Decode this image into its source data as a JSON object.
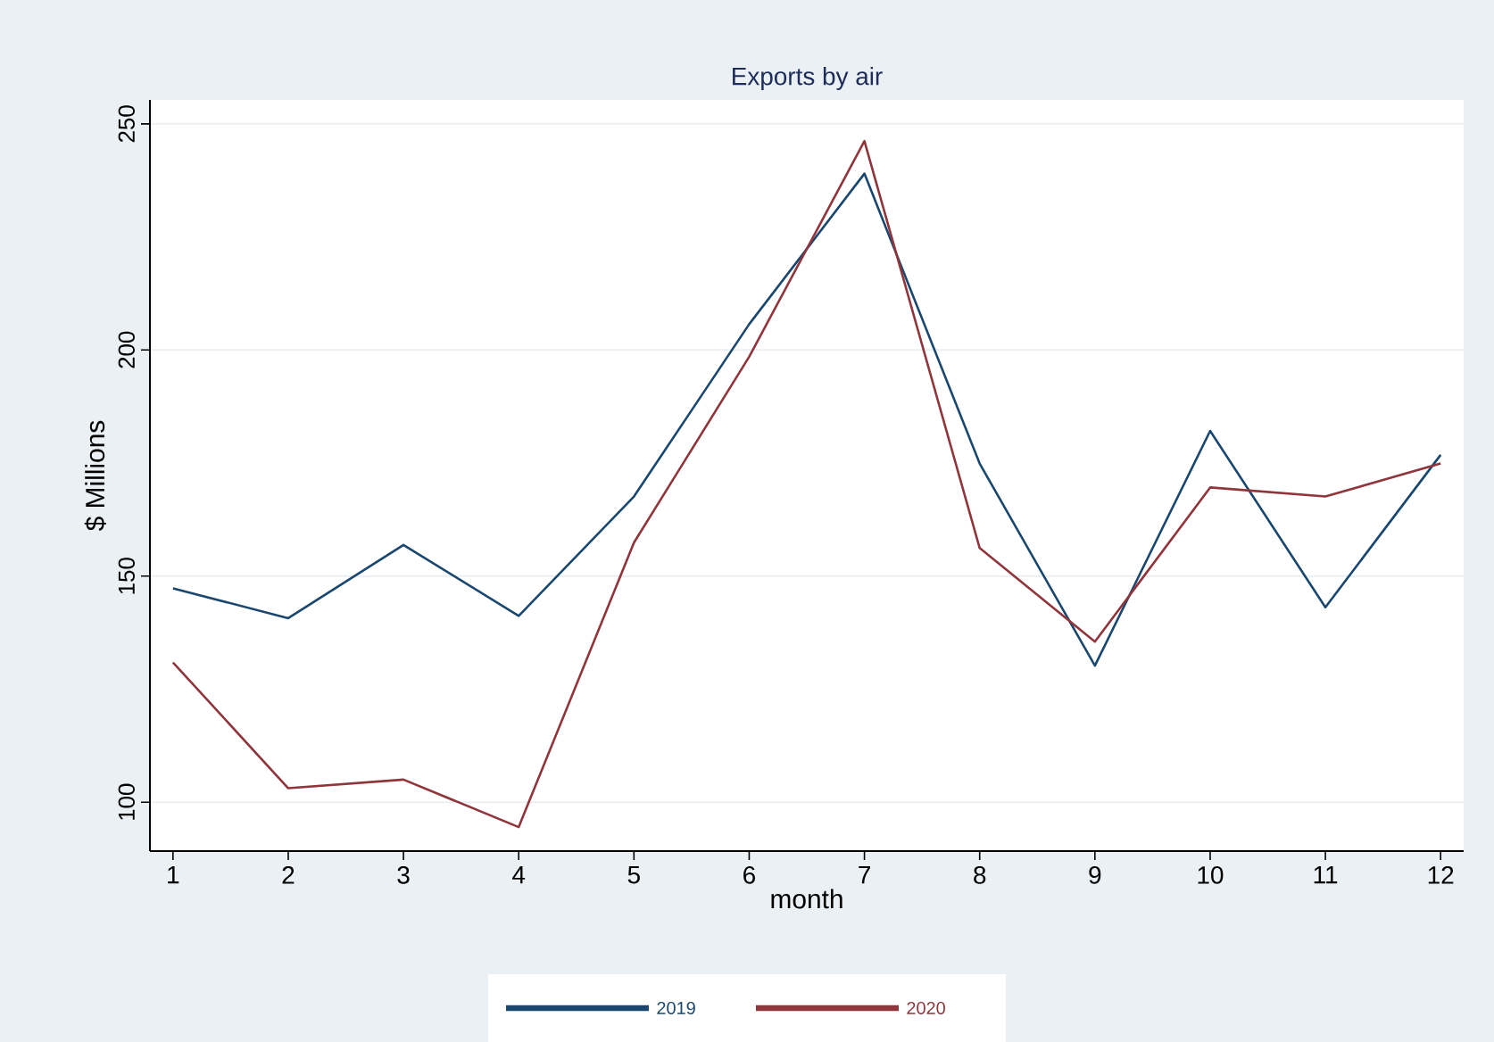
{
  "chart_data": {
    "type": "line",
    "title": "Exports by air",
    "xlabel": "month",
    "ylabel": "$ Millions",
    "x": [
      1,
      2,
      3,
      4,
      5,
      6,
      7,
      8,
      9,
      10,
      11,
      12
    ],
    "series": [
      {
        "name": "2019",
        "color": "#1a476f",
        "values": [
          147.3,
          140.7,
          156.9,
          141.2,
          167.6,
          205.7,
          239,
          174.9,
          130.2,
          182.1,
          143.1,
          176.8
        ]
      },
      {
        "name": "2020",
        "color": "#90353b",
        "values": [
          130.9,
          103.1,
          105.0,
          94.5,
          157.4,
          198.5,
          246.2,
          156.2,
          135.5,
          169.6,
          167.6,
          174.9
        ]
      }
    ],
    "xlim": [
      0.8,
      12.2
    ],
    "ylim": [
      89.2,
      255.3
    ],
    "xticks": [
      1,
      2,
      3,
      4,
      5,
      6,
      7,
      8,
      9,
      10,
      11,
      12
    ],
    "yticks": [
      100,
      150,
      200,
      250
    ],
    "grid": "y",
    "legend": "bottom",
    "marker": "none",
    "line_style": "solid"
  }
}
